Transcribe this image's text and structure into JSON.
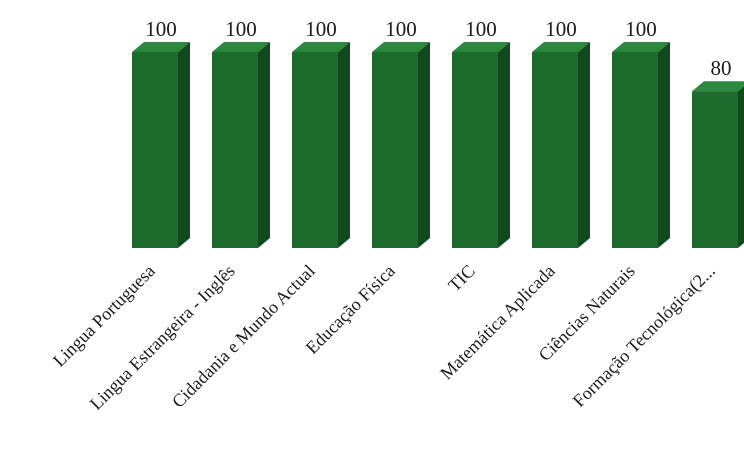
{
  "chart_data": {
    "type": "bar",
    "style": "3d-column",
    "categories": [
      "Lingua Portuguesa",
      "Lingua Estrangeira - Inglês",
      "Cidadania e Mundo Actual",
      "Educação Física",
      "TIC",
      "Matemática Aplicada",
      "Ciências Naturais",
      "Formação Tecnológica(2..."
    ],
    "values": [
      100,
      100,
      100,
      100,
      100,
      100,
      100,
      80
    ],
    "data_labels": [
      "100",
      "100",
      "100",
      "100",
      "100",
      "100",
      "100",
      "80"
    ],
    "ylim": [
      0,
      100
    ],
    "grid": false,
    "legend": "none",
    "colors": {
      "front": "#1e6b2e",
      "side": "#134a1d",
      "top": "#2b8a3e"
    }
  }
}
